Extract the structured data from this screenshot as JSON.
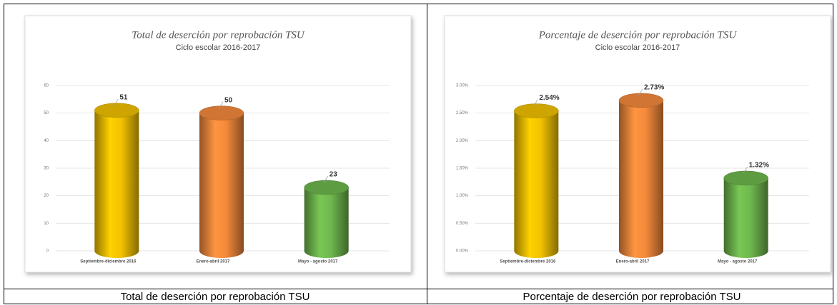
{
  "chart_data": [
    {
      "type": "bar",
      "title": "Total de deserción por reprobación TSU",
      "subtitle": "Ciclo escolar 2016-2017",
      "categories": [
        "Septiembre-diciembre 2016",
        "Enero-abril 2017",
        "Mayo - agosto 2017"
      ],
      "values": [
        51,
        50,
        23
      ],
      "colors": [
        "#f2c200",
        "#f58a3c",
        "#6fb84e"
      ],
      "ylim": [
        0,
        60
      ],
      "yticks": [
        0,
        10,
        20,
        30,
        40,
        50,
        60
      ],
      "grid": true
    },
    {
      "type": "bar",
      "title": "Porcentaje de deserción por reprobación TSU",
      "subtitle": "Ciclo escolar 2016-2017",
      "categories": [
        "Septiembre-diciembre 2016",
        "Enero-abril 2017",
        "Mayo - agosto 2017"
      ],
      "values": [
        2.54,
        2.73,
        1.32
      ],
      "value_labels": [
        "2.54%",
        "2.73%",
        "1.32%"
      ],
      "colors": [
        "#f2c200",
        "#f58a3c",
        "#6fb84e"
      ],
      "ylim": [
        0,
        3
      ],
      "yticks": [
        {
          "value": 0,
          "label": "0.00%"
        },
        {
          "value": 0.5,
          "label": "0.50%"
        },
        {
          "value": 1,
          "label": "1.00%"
        },
        {
          "value": 1.5,
          "label": "1.50%"
        },
        {
          "value": 2,
          "label": "2.00%"
        },
        {
          "value": 2.5,
          "label": "2.50%"
        },
        {
          "value": 3,
          "label": "3.00%"
        }
      ],
      "grid": true
    }
  ],
  "captions": [
    "Total de deserción por reprobación TSU",
    "Porcentaje de deserción por reprobación TSU"
  ]
}
